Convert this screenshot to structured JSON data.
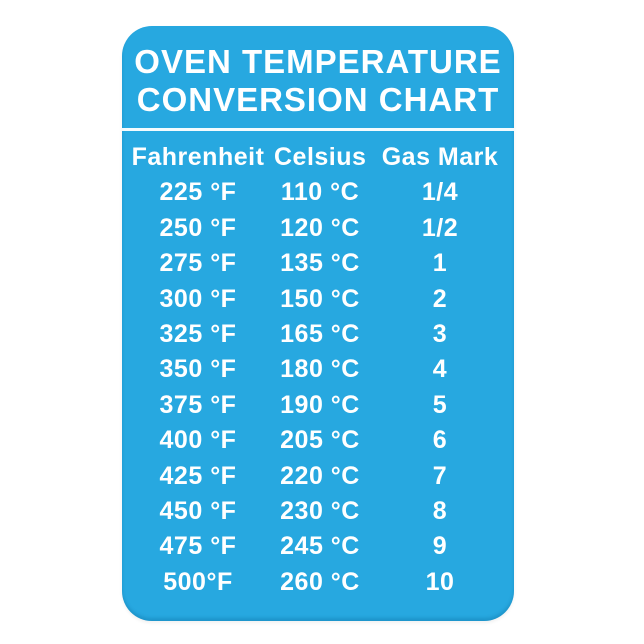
{
  "page": {
    "background": "#FFFFFF"
  },
  "card": {
    "background": "#27A8E0",
    "text_color": "#FFFFFF",
    "divider_color": "#FFFFFF",
    "title_line1": "OVEN TEMPERATURE",
    "title_line2": "CONVERSION CHART"
  },
  "chart_data": {
    "type": "table",
    "title": "OVEN TEMPERATURE CONVERSION CHART",
    "columns": [
      "Fahrenheit",
      "Celsius",
      "Gas Mark"
    ],
    "rows": [
      [
        "225 °F",
        "110 °C",
        "1/4"
      ],
      [
        "250 °F",
        "120 °C",
        "1/2"
      ],
      [
        "275 °F",
        "135 °C",
        "1"
      ],
      [
        "300 °F",
        "150 °C",
        "2"
      ],
      [
        "325 °F",
        "165 °C",
        "3"
      ],
      [
        "350 °F",
        "180 °C",
        "4"
      ],
      [
        "375 °F",
        "190 °C",
        "5"
      ],
      [
        "400 °F",
        "205 °C",
        "6"
      ],
      [
        "425 °F",
        "220 °C",
        "7"
      ],
      [
        "450 °F",
        "230 °C",
        "8"
      ],
      [
        "475 °F",
        "245 °C",
        "9"
      ],
      [
        "500°F",
        "260 °C",
        "10"
      ]
    ]
  }
}
